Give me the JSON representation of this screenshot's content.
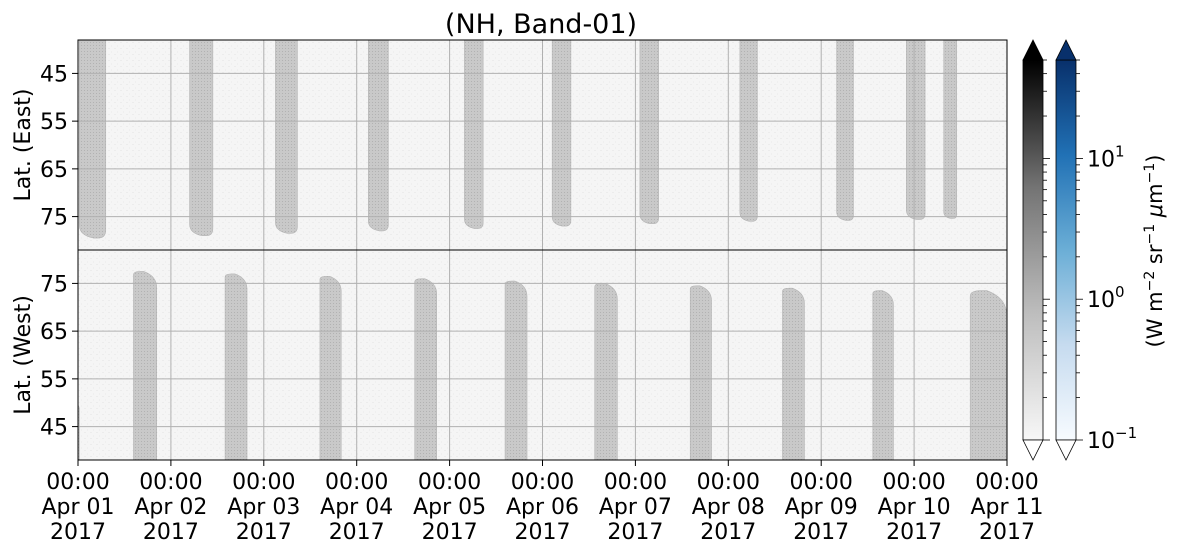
{
  "chart_data": {
    "type": "heatmap",
    "title": "(NH, Band-01)",
    "x_ticks": [
      {
        "time": "00:00",
        "date": "Apr 01",
        "year": "2017"
      },
      {
        "time": "00:00",
        "date": "Apr 02",
        "year": "2017"
      },
      {
        "time": "00:00",
        "date": "Apr 03",
        "year": "2017"
      },
      {
        "time": "00:00",
        "date": "Apr 04",
        "year": "2017"
      },
      {
        "time": "00:00",
        "date": "Apr 05",
        "year": "2017"
      },
      {
        "time": "00:00",
        "date": "Apr 06",
        "year": "2017"
      },
      {
        "time": "00:00",
        "date": "Apr 07",
        "year": "2017"
      },
      {
        "time": "00:00",
        "date": "Apr 08",
        "year": "2017"
      },
      {
        "time": "00:00",
        "date": "Apr 09",
        "year": "2017"
      },
      {
        "time": "00:00",
        "date": "Apr 10",
        "year": "2017"
      },
      {
        "time": "00:00",
        "date": "Apr 11",
        "year": "2017"
      }
    ],
    "xlim": [
      "2017-04-01 00:00",
      "2017-04-11 00:00"
    ],
    "grid": true,
    "panels": [
      {
        "name": "east",
        "ylabel": "Lat. (East)",
        "ylim": [
          38,
          82
        ],
        "y_inverted": true,
        "yticks": [
          45,
          55,
          65,
          75
        ],
        "ytick_labels": [
          "45",
          "55",
          "65",
          "75"
        ]
      },
      {
        "name": "west",
        "ylabel": "Lat. (West)",
        "ylim": [
          38,
          82
        ],
        "y_inverted": false,
        "yticks": [
          45,
          55,
          65,
          75
        ],
        "ytick_labels": [
          "45",
          "55",
          "65",
          "75"
        ]
      }
    ],
    "bands": {
      "east": [
        {
          "start": "2017-04-01 00:20",
          "end": "2017-04-01 07:10",
          "lat_extent": 79.5
        },
        {
          "start": "2017-04-02 04:50",
          "end": "2017-04-02 10:50",
          "lat_extent": 79.0
        },
        {
          "start": "2017-04-03 03:00",
          "end": "2017-04-03 08:40",
          "lat_extent": 78.5
        },
        {
          "start": "2017-04-04 03:00",
          "end": "2017-04-04 08:10",
          "lat_extent": 78.0
        },
        {
          "start": "2017-04-05 03:50",
          "end": "2017-04-05 08:40",
          "lat_extent": 77.5
        },
        {
          "start": "2017-04-06 02:30",
          "end": "2017-04-06 07:20",
          "lat_extent": 77.0
        },
        {
          "start": "2017-04-07 01:10",
          "end": "2017-04-07 06:00",
          "lat_extent": 76.5
        },
        {
          "start": "2017-04-08 03:00",
          "end": "2017-04-08 07:30",
          "lat_extent": 76.0
        },
        {
          "start": "2017-04-09 04:00",
          "end": "2017-04-09 08:20",
          "lat_extent": 75.8
        },
        {
          "start": "2017-04-09 22:00",
          "end": "2017-04-10 02:50",
          "lat_extent": 75.6
        },
        {
          "start": "2017-04-10 07:40",
          "end": "2017-04-10 11:00",
          "lat_extent": 75.4
        }
      ],
      "west": [
        {
          "start": "2017-03-31 22:00",
          "end": "2017-04-01 00:20",
          "lat_extent": 50.0
        },
        {
          "start": "2017-04-01 14:20",
          "end": "2017-04-01 20:20",
          "lat_extent": 77.5
        },
        {
          "start": "2017-04-02 14:00",
          "end": "2017-04-02 19:40",
          "lat_extent": 77.0
        },
        {
          "start": "2017-04-03 14:30",
          "end": "2017-04-03 20:00",
          "lat_extent": 76.5
        },
        {
          "start": "2017-04-04 15:00",
          "end": "2017-04-04 20:40",
          "lat_extent": 76.0
        },
        {
          "start": "2017-04-05 14:20",
          "end": "2017-04-05 20:00",
          "lat_extent": 75.5
        },
        {
          "start": "2017-04-06 13:30",
          "end": "2017-04-06 19:20",
          "lat_extent": 75.0
        },
        {
          "start": "2017-04-07 14:10",
          "end": "2017-04-07 19:40",
          "lat_extent": 74.5
        },
        {
          "start": "2017-04-08 14:00",
          "end": "2017-04-08 19:40",
          "lat_extent": 74.0
        },
        {
          "start": "2017-04-09 13:20",
          "end": "2017-04-09 18:40",
          "lat_extent": 73.5
        },
        {
          "start": "2017-04-10 14:30",
          "end": "2017-04-10 23:59",
          "lat_extent": 73.5
        }
      ]
    },
    "colorbars": [
      {
        "name": "gray",
        "colors": [
          "#f7f7f7",
          "#bdbdbd",
          "#737373",
          "#000000"
        ],
        "over_color": "#000000",
        "under_color": "#ffffff"
      },
      {
        "name": "blue",
        "colors": [
          "#f7fbff",
          "#c6dbef",
          "#6baed6",
          "#2171b5",
          "#08306b"
        ],
        "over_color": "#08306b",
        "under_color": "#ffffff"
      }
    ],
    "colorbar_scale": "log",
    "colorbar_range": [
      0.1,
      50
    ],
    "colorbar_ticks": [
      {
        "value": 0.1,
        "base": "10",
        "exp": "−1"
      },
      {
        "value": 1,
        "base": "10",
        "exp": "0"
      },
      {
        "value": 10,
        "base": "10",
        "exp": "1"
      }
    ],
    "colorbar_label": {
      "prefix": "(W m",
      "sup1": "−2",
      "mid1": " sr",
      "sup2": "−1",
      "mid2": " ",
      "mu": "μ",
      "mid3": "m",
      "sup3": "−1",
      "suffix": ")"
    },
    "colors": {
      "band_fill": "#c8c8c8",
      "band_stipple": "#b4b4b4",
      "background": "#f4f4f4",
      "grid": "#b0b0b0"
    }
  }
}
